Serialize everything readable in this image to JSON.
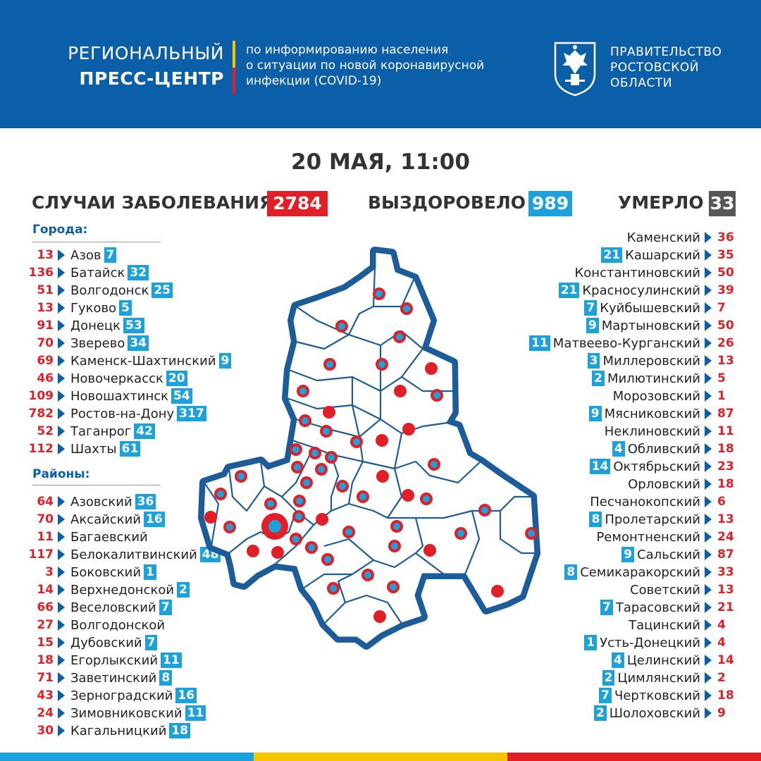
{
  "header": {
    "title_line1": "РЕГИОНАЛЬНЫЙ",
    "title_line2": "ПРЕСС-ЦЕНТР",
    "subtitle_lines": [
      "по информированию населения",
      "о ситуации по новой коронавирусной",
      "инфекции (COVID-19)"
    ],
    "gov_lines": [
      "ПРАВИТЕЛЬСТВО",
      "РОСТОВСКОЙ",
      "ОБЛАСТИ"
    ]
  },
  "colors": {
    "blue": "#0b5ea8",
    "light_blue": "#1ba2dd",
    "red": "#e21f26",
    "gray": "#575757",
    "yellow": "#f7c400",
    "orange": "#f08c00"
  },
  "date": "20 МАЯ, 11:00",
  "stats": {
    "cases_label": "СЛУЧАИ ЗАБОЛЕВАНИЯ",
    "cases_value": "2784",
    "recovered_label": "ВЫЗДОРОВЕЛО",
    "recovered_value": "989",
    "deaths_label": "УМЕРЛО",
    "deaths_value": "33"
  },
  "sections": {
    "cities_label": "Города:",
    "districts_label": "Районы:"
  },
  "cities": [
    {
      "cases": "13",
      "name": "Азов",
      "recovered": "7"
    },
    {
      "cases": "136",
      "name": "Батайск",
      "recovered": "32"
    },
    {
      "cases": "51",
      "name": "Волгодонск",
      "recovered": "25"
    },
    {
      "cases": "13",
      "name": "Гуково",
      "recovered": "5"
    },
    {
      "cases": "91",
      "name": "Донецк",
      "recovered": "53"
    },
    {
      "cases": "70",
      "name": "Зверево",
      "recovered": "34"
    },
    {
      "cases": "69",
      "name": "Каменск-Шахтинский",
      "recovered": "9"
    },
    {
      "cases": "46",
      "name": "Новочеркасск",
      "recovered": "20"
    },
    {
      "cases": "109",
      "name": "Новошахтинск",
      "recovered": "54"
    },
    {
      "cases": "782",
      "name": "Ростов-на-Дону",
      "recovered": "317"
    },
    {
      "cases": "52",
      "name": "Таганрог",
      "recovered": "42"
    },
    {
      "cases": "112",
      "name": "Шахты",
      "recovered": "61"
    }
  ],
  "districts_left": [
    {
      "cases": "64",
      "name": "Азовский",
      "recovered": "36"
    },
    {
      "cases": "70",
      "name": "Аксайский",
      "recovered": "16"
    },
    {
      "cases": "11",
      "name": "Багаевский",
      "recovered": ""
    },
    {
      "cases": "117",
      "name": "Белокалитвинский",
      "recovered": "48"
    },
    {
      "cases": "3",
      "name": "Боковский",
      "recovered": "1"
    },
    {
      "cases": "14",
      "name": "Верхнедонской",
      "recovered": "2"
    },
    {
      "cases": "66",
      "name": "Веселовский",
      "recovered": "7"
    },
    {
      "cases": "27",
      "name": "Волгодонской",
      "recovered": ""
    },
    {
      "cases": "15",
      "name": "Дубовский",
      "recovered": "7"
    },
    {
      "cases": "18",
      "name": "Егорлыкский",
      "recovered": "11"
    },
    {
      "cases": "71",
      "name": "Заветинский",
      "recovered": "8"
    },
    {
      "cases": "43",
      "name": "Зерноградский",
      "recovered": "16"
    },
    {
      "cases": "24",
      "name": "Зимовниковский",
      "recovered": "11"
    },
    {
      "cases": "30",
      "name": "Кагальницкий",
      "recovered": "18"
    }
  ],
  "districts_right": [
    {
      "recovered": "",
      "name": "Каменский",
      "cases": "36"
    },
    {
      "recovered": "21",
      "name": "Кашарский",
      "cases": "35"
    },
    {
      "recovered": "",
      "name": "Константиновский",
      "cases": "50"
    },
    {
      "recovered": "21",
      "name": "Красносулинский",
      "cases": "39"
    },
    {
      "recovered": "7",
      "name": "Куйбышевский",
      "cases": "7"
    },
    {
      "recovered": "9",
      "name": "Мартыновский",
      "cases": "50"
    },
    {
      "recovered": "11",
      "name": "Матвеево-Курганский",
      "cases": "26"
    },
    {
      "recovered": "3",
      "name": "Миллеровский",
      "cases": "13"
    },
    {
      "recovered": "2",
      "name": "Милютинский",
      "cases": "5"
    },
    {
      "recovered": "",
      "name": "Морозовский",
      "cases": "1"
    },
    {
      "recovered": "9",
      "name": "Мясниковский",
      "cases": "87"
    },
    {
      "recovered": "",
      "name": "Неклиновский",
      "cases": "11"
    },
    {
      "recovered": "4",
      "name": "Обливский",
      "cases": "18"
    },
    {
      "recovered": "14",
      "name": "Октябрьский",
      "cases": "23"
    },
    {
      "recovered": "",
      "name": "Орловский",
      "cases": "18"
    },
    {
      "recovered": "",
      "name": "Песчанокопский",
      "cases": "6"
    },
    {
      "recovered": "8",
      "name": "Пролетарский",
      "cases": "13"
    },
    {
      "recovered": "",
      "name": "Ремонтненский",
      "cases": "24"
    },
    {
      "recovered": "9",
      "name": "Сальский",
      "cases": "87"
    },
    {
      "recovered": "8",
      "name": "Семикаракорский",
      "cases": "33"
    },
    {
      "recovered": "",
      "name": "Советский",
      "cases": "13"
    },
    {
      "recovered": "7",
      "name": "Тарасовский",
      "cases": "21"
    },
    {
      "recovered": "",
      "name": "Тацинский",
      "cases": "4"
    },
    {
      "recovered": "1",
      "name": "Усть-Донецкий",
      "cases": "4"
    },
    {
      "recovered": "4",
      "name": "Целинский",
      "cases": "14"
    },
    {
      "recovered": "2",
      "name": "Цимлянский",
      "cases": "2"
    },
    {
      "recovered": "7",
      "name": "Чертковский",
      "cases": "18"
    },
    {
      "recovered": "2",
      "name": "Шолоховский",
      "cases": "9"
    }
  ]
}
